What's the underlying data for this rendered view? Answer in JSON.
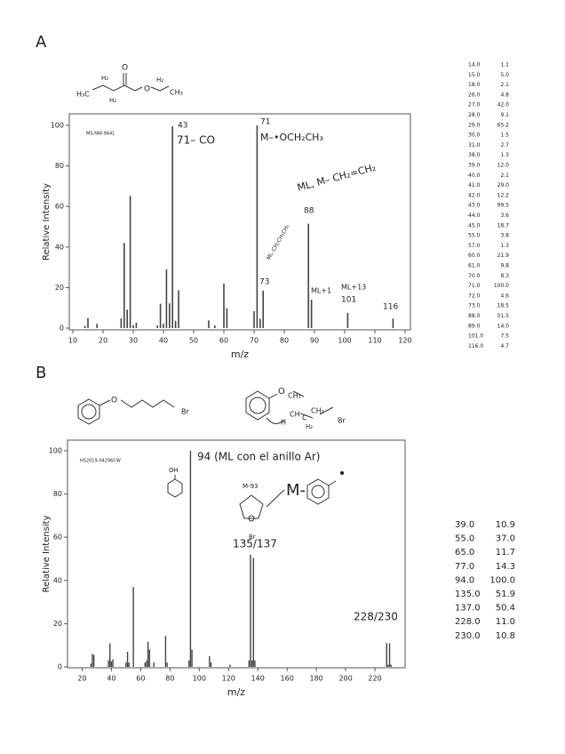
{
  "chart_data": [
    {
      "type": "bar",
      "panel_label": "A",
      "code": "MS-NW-9441",
      "xlabel": "m/z",
      "ylabel": "Relative Intensity",
      "xlim": [
        10,
        120
      ],
      "xticks": [
        10,
        20,
        30,
        40,
        50,
        60,
        70,
        80,
        90,
        100,
        110,
        120
      ],
      "ylim": [
        0,
        100
      ],
      "yticks": [
        0,
        20,
        40,
        60,
        80,
        100
      ],
      "color": "#444",
      "x": [
        14,
        15,
        18,
        26,
        27,
        28,
        29,
        30,
        31,
        38,
        39,
        40,
        41,
        42,
        43,
        44,
        45,
        55,
        57,
        60,
        61,
        70,
        71,
        72,
        73,
        88,
        89,
        101,
        116
      ],
      "values": [
        1.1,
        5.0,
        2.1,
        4.8,
        42.0,
        9.1,
        65.2,
        1.5,
        2.7,
        1.3,
        12.0,
        2.1,
        29.0,
        12.2,
        99.5,
        3.6,
        18.7,
        3.8,
        1.3,
        21.9,
        9.8,
        8.3,
        100.0,
        4.6,
        18.5,
        51.5,
        14.0,
        7.5,
        4.7
      ],
      "annotations": [
        "43",
        "71– CO",
        "71",
        "M–•OCH₂CH₃",
        "ML, M– CH₂=CH₂",
        "88",
        "ML–CH₂CH₂CH₃",
        "73",
        "ML+1",
        "ML+13",
        "101",
        "116"
      ],
      "structure_labels": [
        "H₃C",
        "H₂",
        "H₂",
        "O",
        "O",
        "H₂",
        "CH₃"
      ],
      "peak_table": [
        [
          "14.0",
          "1.1"
        ],
        [
          "15.0",
          "5.0"
        ],
        [
          "18.0",
          "2.1"
        ],
        [
          "26.0",
          "4.8"
        ],
        [
          "27.0",
          "42.0"
        ],
        [
          "28.0",
          "9.1"
        ],
        [
          "29.0",
          "65.2"
        ],
        [
          "30.0",
          "1.5"
        ],
        [
          "31.0",
          "2.7"
        ],
        [
          "38.0",
          "1.3"
        ],
        [
          "39.0",
          "12.0"
        ],
        [
          "40.0",
          "2.1"
        ],
        [
          "41.0",
          "29.0"
        ],
        [
          "42.0",
          "12.2"
        ],
        [
          "43.0",
          "99.5"
        ],
        [
          "44.0",
          "3.6"
        ],
        [
          "45.0",
          "18.7"
        ],
        [
          "55.0",
          "3.8"
        ],
        [
          "57.0",
          "1.3"
        ],
        [
          "60.0",
          "21.9"
        ],
        [
          "61.0",
          "9.8"
        ],
        [
          "70.0",
          "8.3"
        ],
        [
          "71.0",
          "100.0"
        ],
        [
          "72.0",
          "4.6"
        ],
        [
          "73.0",
          "18.5"
        ],
        [
          "88.0",
          "51.5"
        ],
        [
          "89.0",
          "14.0"
        ],
        [
          "101.0",
          "7.5"
        ],
        [
          "116.0",
          "4.7"
        ]
      ]
    },
    {
      "type": "bar",
      "panel_label": "B",
      "code": "HS2019-04296CW",
      "xlabel": "m/z",
      "ylabel": "Relative Intensity",
      "xlim": [
        10,
        240
      ],
      "xticks": [
        20,
        40,
        60,
        80,
        100,
        120,
        140,
        160,
        180,
        200,
        220
      ],
      "ylim": [
        0,
        100
      ],
      "yticks": [
        0,
        20,
        40,
        60,
        80,
        100
      ],
      "color": "#444",
      "x": [
        26,
        27,
        28,
        38,
        39,
        40,
        41,
        50,
        51,
        52,
        55,
        63,
        64,
        65,
        66,
        69,
        77,
        78,
        93,
        94,
        95,
        107,
        108,
        121,
        134,
        135,
        136,
        137,
        138,
        228,
        229,
        230,
        231
      ],
      "values": [
        1.5,
        6,
        5.5,
        3,
        10.9,
        2.5,
        3.5,
        2,
        7,
        2,
        37.0,
        2,
        3,
        11.7,
        8,
        2,
        14.3,
        2,
        3,
        100.0,
        8,
        5,
        2,
        1,
        3,
        51.9,
        3,
        50.4,
        3,
        11.0,
        1,
        10.8,
        1
      ],
      "annotations": [
        "OH",
        "94 (ML con el anillo Ar)",
        "M-93",
        "Br",
        "135/137",
        "M-",
        "228/230"
      ],
      "structure_labels": [
        "O",
        "Br",
        "O",
        "CH₂",
        "H",
        "CH",
        "C",
        "H₂",
        "CH₂",
        "Br"
      ],
      "peak_table": [
        [
          "39.0",
          "10.9"
        ],
        [
          "55.0",
          "37.0"
        ],
        [
          "65.0",
          "11.7"
        ],
        [
          "77.0",
          "14.3"
        ],
        [
          "94.0",
          "100.0"
        ],
        [
          "135.0",
          "51.9"
        ],
        [
          "137.0",
          "50.4"
        ],
        [
          "228.0",
          "11.0"
        ],
        [
          "230.0",
          "10.8"
        ]
      ]
    }
  ]
}
